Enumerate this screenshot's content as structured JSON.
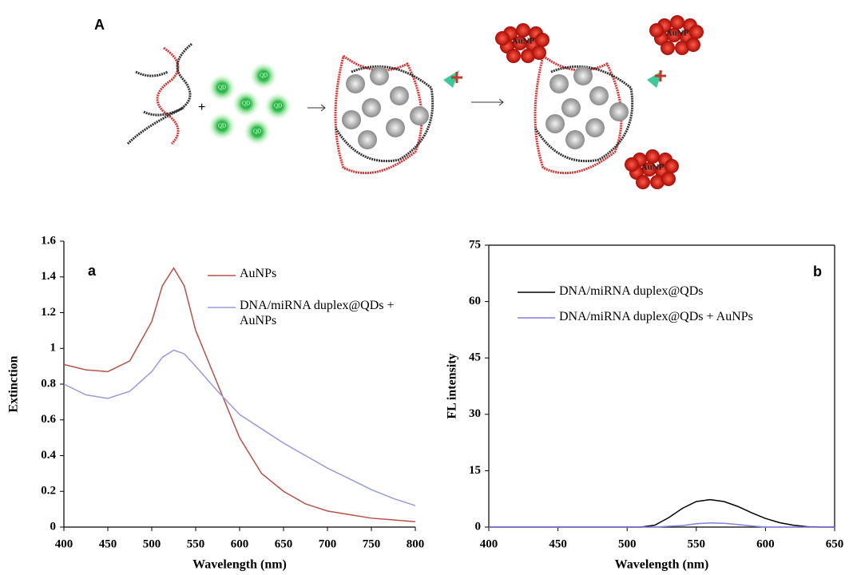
{
  "diagram": {
    "panel_label": "A",
    "qd_labels": [
      "QD",
      "QD",
      "QD",
      "QD",
      "QD",
      "QD"
    ],
    "aunp_labels": [
      "AuNP",
      "AuNP",
      "AuNP"
    ]
  },
  "chart_data": [
    {
      "type": "line",
      "panel_label": "a",
      "xlabel": "Wavelength (nm)",
      "ylabel": "Extinction",
      "x": [
        400,
        425,
        450,
        475,
        500,
        512,
        525,
        537,
        550,
        575,
        600,
        625,
        650,
        675,
        700,
        725,
        750,
        775,
        800
      ],
      "series": [
        {
          "name": "AuNPs",
          "color": "#b5534a",
          "values": [
            0.91,
            0.88,
            0.87,
            0.93,
            1.15,
            1.35,
            1.45,
            1.35,
            1.1,
            0.8,
            0.5,
            0.3,
            0.2,
            0.13,
            0.09,
            0.07,
            0.05,
            0.04,
            0.03
          ]
        },
        {
          "name": "DNA/miRNA duplex@QDs + AuNPs",
          "color": "#9a9ae0",
          "values": [
            0.8,
            0.74,
            0.72,
            0.76,
            0.87,
            0.95,
            0.99,
            0.97,
            0.9,
            0.76,
            0.63,
            0.55,
            0.47,
            0.4,
            0.33,
            0.27,
            0.21,
            0.16,
            0.12
          ]
        }
      ],
      "xlim": [
        400,
        800
      ],
      "xticks": [
        400,
        450,
        500,
        550,
        600,
        650,
        700,
        750,
        800
      ],
      "ylim": [
        0,
        1.6
      ],
      "yticks": [
        0,
        0.2,
        0.4,
        0.6,
        0.8,
        1,
        1.2,
        1.4,
        1.6
      ],
      "box": false
    },
    {
      "type": "line",
      "panel_label": "b",
      "xlabel": "Wavelength (nm)",
      "ylabel": "FL intensity",
      "x": [
        400,
        420,
        440,
        460,
        480,
        500,
        510,
        520,
        530,
        540,
        550,
        560,
        570,
        580,
        590,
        600,
        610,
        620,
        630,
        640,
        650
      ],
      "series": [
        {
          "name": "DNA/miRNA duplex@QDs",
          "color": "#000000",
          "values": [
            0,
            0,
            0,
            0,
            0,
            0,
            0,
            0.5,
            2.5,
            5,
            6.8,
            7.3,
            6.8,
            5.5,
            3.8,
            2.3,
            1.2,
            0.5,
            0.1,
            0,
            0
          ]
        },
        {
          "name": "DNA/miRNA duplex@QDs + AuNPs",
          "color": "#8080e0",
          "values": [
            0,
            0,
            0,
            0,
            0,
            0,
            0,
            0,
            0.2,
            0.4,
            0.9,
            1.1,
            1,
            0.7,
            0.3,
            0,
            0,
            0,
            0,
            0,
            0
          ]
        }
      ],
      "xlim": [
        400,
        650
      ],
      "xticks": [
        400,
        450,
        500,
        550,
        600,
        650
      ],
      "ylim": [
        0,
        75
      ],
      "yticks": [
        0,
        15,
        30,
        45,
        60,
        75
      ],
      "box": true
    }
  ]
}
